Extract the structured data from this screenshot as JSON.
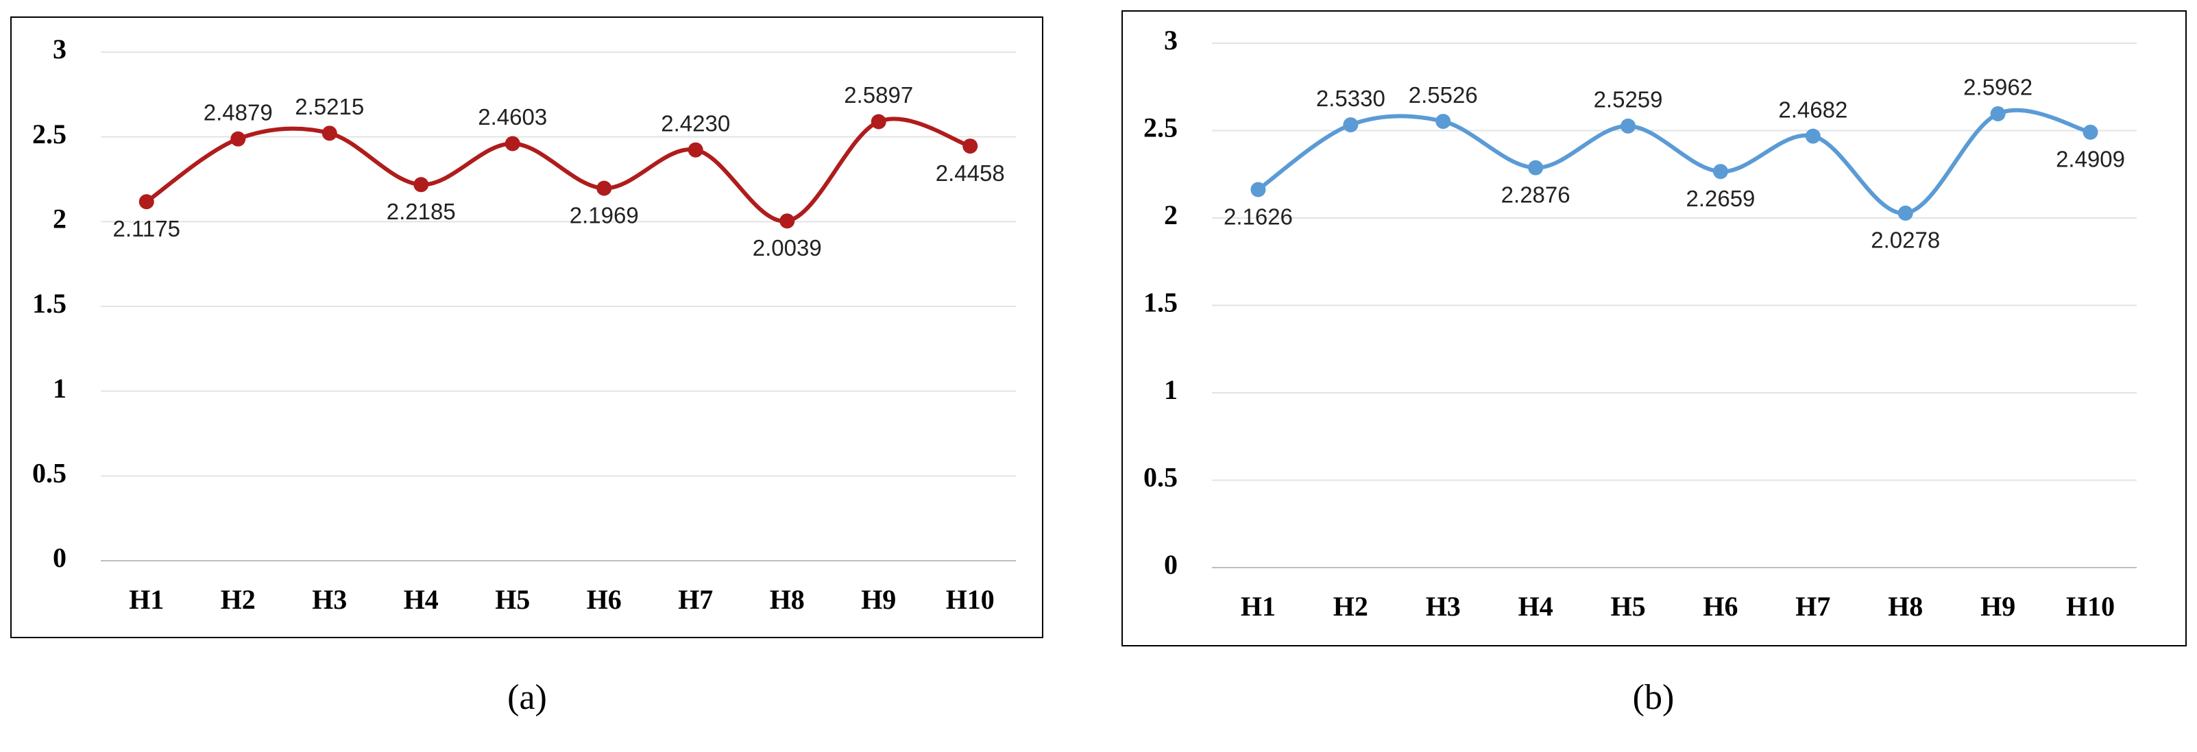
{
  "chart_data": [
    {
      "type": "line",
      "caption": "(a)",
      "categories": [
        "H1",
        "H2",
        "H3",
        "H4",
        "H5",
        "H6",
        "H7",
        "H8",
        "H9",
        "H10"
      ],
      "values": [
        2.1175,
        2.4879,
        2.5215,
        2.2185,
        2.4603,
        2.1969,
        2.423,
        2.0039,
        2.5897,
        2.4458
      ],
      "value_labels": [
        "2.1175",
        "2.4879",
        "2.5215",
        "2.2185",
        "2.4603",
        "2.1969",
        "2.4230",
        "2.0039",
        "2.5897",
        "2.4458"
      ],
      "color": "#b01c1c",
      "smooth": true,
      "grid": true,
      "ylim": [
        0,
        3
      ],
      "yticks": [
        0,
        0.5,
        1,
        1.5,
        2,
        2.5,
        3
      ]
    },
    {
      "type": "line",
      "caption": "(b)",
      "categories": [
        "H1",
        "H2",
        "H3",
        "H4",
        "H5",
        "H6",
        "H7",
        "H8",
        "H9",
        "H10"
      ],
      "values": [
        2.1626,
        2.533,
        2.5526,
        2.2876,
        2.5259,
        2.2659,
        2.4682,
        2.0278,
        2.5962,
        2.4909
      ],
      "value_labels": [
        "2.1626",
        "2.5330",
        "2.5526",
        "2.2876",
        "2.5259",
        "2.2659",
        "2.4682",
        "2.0278",
        "2.5962",
        "2.4909"
      ],
      "color": "#5b9bd5",
      "smooth": true,
      "grid": true,
      "ylim": [
        0,
        3
      ],
      "yticks": [
        0,
        0.5,
        1,
        1.5,
        2,
        2.5,
        3
      ]
    }
  ]
}
